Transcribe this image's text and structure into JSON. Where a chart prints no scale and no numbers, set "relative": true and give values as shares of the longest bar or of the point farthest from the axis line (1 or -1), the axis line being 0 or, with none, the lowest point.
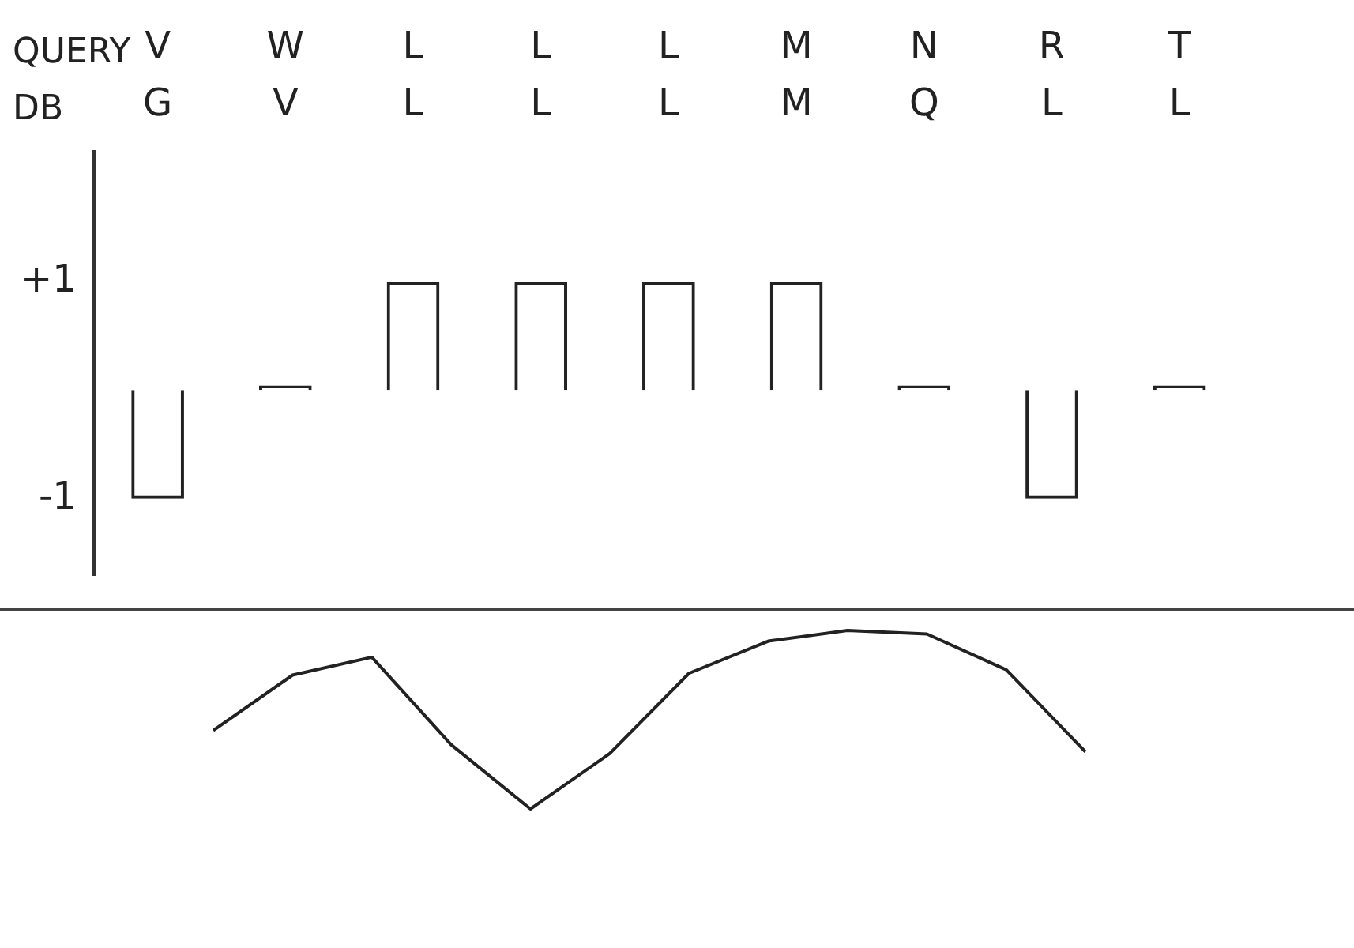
{
  "chart_data": [
    {
      "type": "bar",
      "categories": [
        "V\nG",
        "W\nV",
        "L\nL",
        "L\nL",
        "L\nL",
        "M\nM",
        "N\nQ",
        "R\nL",
        "T\nL"
      ],
      "values": [
        -1,
        0.05,
        1,
        1,
        1,
        1,
        0.05,
        -1,
        0.05
      ],
      "color": "#222222",
      "annotations": [
        "QUERY",
        "DB"
      ],
      "ylim": [
        -1.7,
        2.2
      ],
      "yticks": [
        {
          "value": 1,
          "label": "+1"
        },
        -1
      ],
      "grid": false,
      "legend": false
    },
    {
      "type": "line",
      "relative": true,
      "color": "#222222",
      "marker": "none",
      "line_style": "solid",
      "categories": [
        null,
        null,
        null,
        null,
        null,
        null,
        null,
        null,
        null,
        null,
        null,
        null
      ],
      "values": [
        0.44,
        0.75,
        0.85,
        0.36,
        0,
        0.31,
        0.76,
        0.94,
        1,
        0.98,
        0.78,
        0.32
      ],
      "grid": false,
      "legend": false
    }
  ]
}
